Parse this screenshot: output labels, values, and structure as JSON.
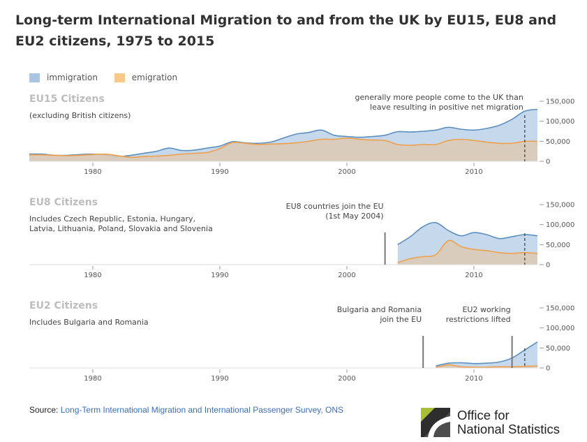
{
  "title": "Long-term International Migration to and from the UK by EU15, EU8 and EU2 citizens, 1975 to 2015",
  "legend": {
    "immigration": "immigration",
    "emigration": "emigration"
  },
  "colors": {
    "immigration_fill": "#c6d8ec",
    "immigration_line": "#5b8fbf",
    "emigration_fill": "#dccab4",
    "emigration_line": "#f0a04b",
    "swatch_immigration": "#a9c5e2",
    "swatch_emigration": "#f9c98c"
  },
  "source": {
    "prefix": "Source: ",
    "link": "Long-Term International Migration and International Passenger Survey, ONS"
  },
  "logo": {
    "line1": "Office for",
    "line2": "National Statistics"
  },
  "chart_data": [
    {
      "type": "area",
      "title": "EU15 Citizens",
      "subtitle": [
        "(excluding British citizens)"
      ],
      "x_ticks": [
        1980,
        1990,
        2000,
        2010
      ],
      "y_ticks": [
        "150,000",
        "100,000",
        "50,000",
        "0"
      ],
      "xlim": [
        1975,
        2015
      ],
      "ylim": [
        0,
        150000
      ],
      "annotations": [
        {
          "lines": [
            "generally more people come to the UK than",
            "leave resulting in positive net migration"
          ],
          "x": 2014,
          "line_style": "dashed"
        }
      ],
      "series": [
        {
          "name": "immigration",
          "x": [
            1975,
            1976,
            1977,
            1978,
            1979,
            1980,
            1981,
            1982,
            1983,
            1984,
            1985,
            1986,
            1987,
            1988,
            1989,
            1990,
            1991,
            1992,
            1993,
            1994,
            1995,
            1996,
            1997,
            1998,
            1999,
            2000,
            2001,
            2002,
            2003,
            2004,
            2005,
            2006,
            2007,
            2008,
            2009,
            2010,
            2011,
            2012,
            2013,
            2014,
            2015
          ],
          "values": [
            18000,
            18000,
            15000,
            15000,
            17000,
            18000,
            15000,
            12000,
            15000,
            20000,
            25000,
            33000,
            27000,
            28000,
            33000,
            38000,
            49000,
            46000,
            45000,
            48000,
            58000,
            68000,
            72000,
            78000,
            65000,
            62000,
            60000,
            62000,
            65000,
            74000,
            73000,
            75000,
            78000,
            85000,
            80000,
            78000,
            82000,
            90000,
            105000,
            125000,
            130000
          ]
        },
        {
          "name": "emigration",
          "x": [
            1975,
            1976,
            1977,
            1978,
            1979,
            1980,
            1981,
            1982,
            1983,
            1984,
            1985,
            1986,
            1987,
            1988,
            1989,
            1990,
            1991,
            1992,
            1993,
            1994,
            1995,
            1996,
            1997,
            1998,
            1999,
            2000,
            2001,
            2002,
            2003,
            2004,
            2005,
            2006,
            2007,
            2008,
            2009,
            2010,
            2011,
            2012,
            2013,
            2014,
            2015
          ],
          "values": [
            16000,
            16000,
            15000,
            14000,
            15000,
            17000,
            18000,
            14000,
            10000,
            12000,
            13000,
            15000,
            18000,
            20000,
            22000,
            32000,
            47000,
            45000,
            42000,
            43000,
            44000,
            46000,
            50000,
            55000,
            55000,
            58000,
            55000,
            53000,
            52000,
            42000,
            40000,
            42000,
            42000,
            52000,
            55000,
            52000,
            48000,
            45000,
            45000,
            50000,
            50000
          ]
        }
      ]
    },
    {
      "type": "area",
      "title": "EU8 Citizens",
      "subtitle": [
        "Includes Czech Republic, Estonia, Hungary,",
        "Latvia, Lithuania, Poland, Slovakia and Slovenia"
      ],
      "x_ticks": [
        1980,
        1990,
        2000,
        2010
      ],
      "y_ticks": [
        "150,000",
        "100,000",
        "50,000",
        "0"
      ],
      "xlim": [
        1975,
        2015
      ],
      "ylim": [
        0,
        150000
      ],
      "annotations": [
        {
          "lines": [
            "EU8 countries join the EU",
            "(1st May 2004)"
          ],
          "x": 2003,
          "line_style": "solid"
        },
        {
          "lines": [],
          "x": 2014,
          "line_style": "dashed"
        }
      ],
      "series": [
        {
          "name": "immigration",
          "x": [
            2004,
            2005,
            2006,
            2007,
            2008,
            2009,
            2010,
            2011,
            2012,
            2013,
            2014,
            2015
          ],
          "values": [
            50000,
            70000,
            95000,
            105000,
            85000,
            72000,
            80000,
            75000,
            65000,
            70000,
            75000,
            72000
          ]
        },
        {
          "name": "emigration",
          "x": [
            2004,
            2005,
            2006,
            2007,
            2008,
            2009,
            2010,
            2011,
            2012,
            2013,
            2014,
            2015
          ],
          "values": [
            5000,
            15000,
            20000,
            25000,
            60000,
            45000,
            38000,
            35000,
            30000,
            28000,
            30000,
            28000
          ]
        }
      ]
    },
    {
      "type": "area",
      "title": "EU2 Citizens",
      "subtitle": [
        "Includes Bulgaria and Romania"
      ],
      "x_ticks": [
        1980,
        1990,
        2000,
        2010
      ],
      "y_ticks": [
        "150,000",
        "100,000",
        "50,000",
        "0"
      ],
      "xlim": [
        1975,
        2015
      ],
      "ylim": [
        0,
        150000
      ],
      "annotations": [
        {
          "lines": [
            "Bulgaria and Romania",
            "join the EU"
          ],
          "x": 2006,
          "line_style": "solid"
        },
        {
          "lines": [
            "EU2 working",
            "restrictions lifted"
          ],
          "x": 2013,
          "line_style": "solid"
        },
        {
          "lines": [],
          "x": 2014,
          "line_style": "dashed"
        }
      ],
      "series": [
        {
          "name": "immigration",
          "x": [
            2007,
            2008,
            2009,
            2010,
            2011,
            2012,
            2013,
            2014,
            2015
          ],
          "values": [
            5000,
            12000,
            13000,
            11000,
            12000,
            15000,
            25000,
            45000,
            65000
          ]
        },
        {
          "name": "emigration",
          "x": [
            2007,
            2008,
            2009,
            2010,
            2011,
            2012,
            2013,
            2014,
            2015
          ],
          "values": [
            1000,
            8000,
            3000,
            2000,
            2000,
            3000,
            3000,
            4000,
            5000
          ]
        }
      ]
    }
  ]
}
